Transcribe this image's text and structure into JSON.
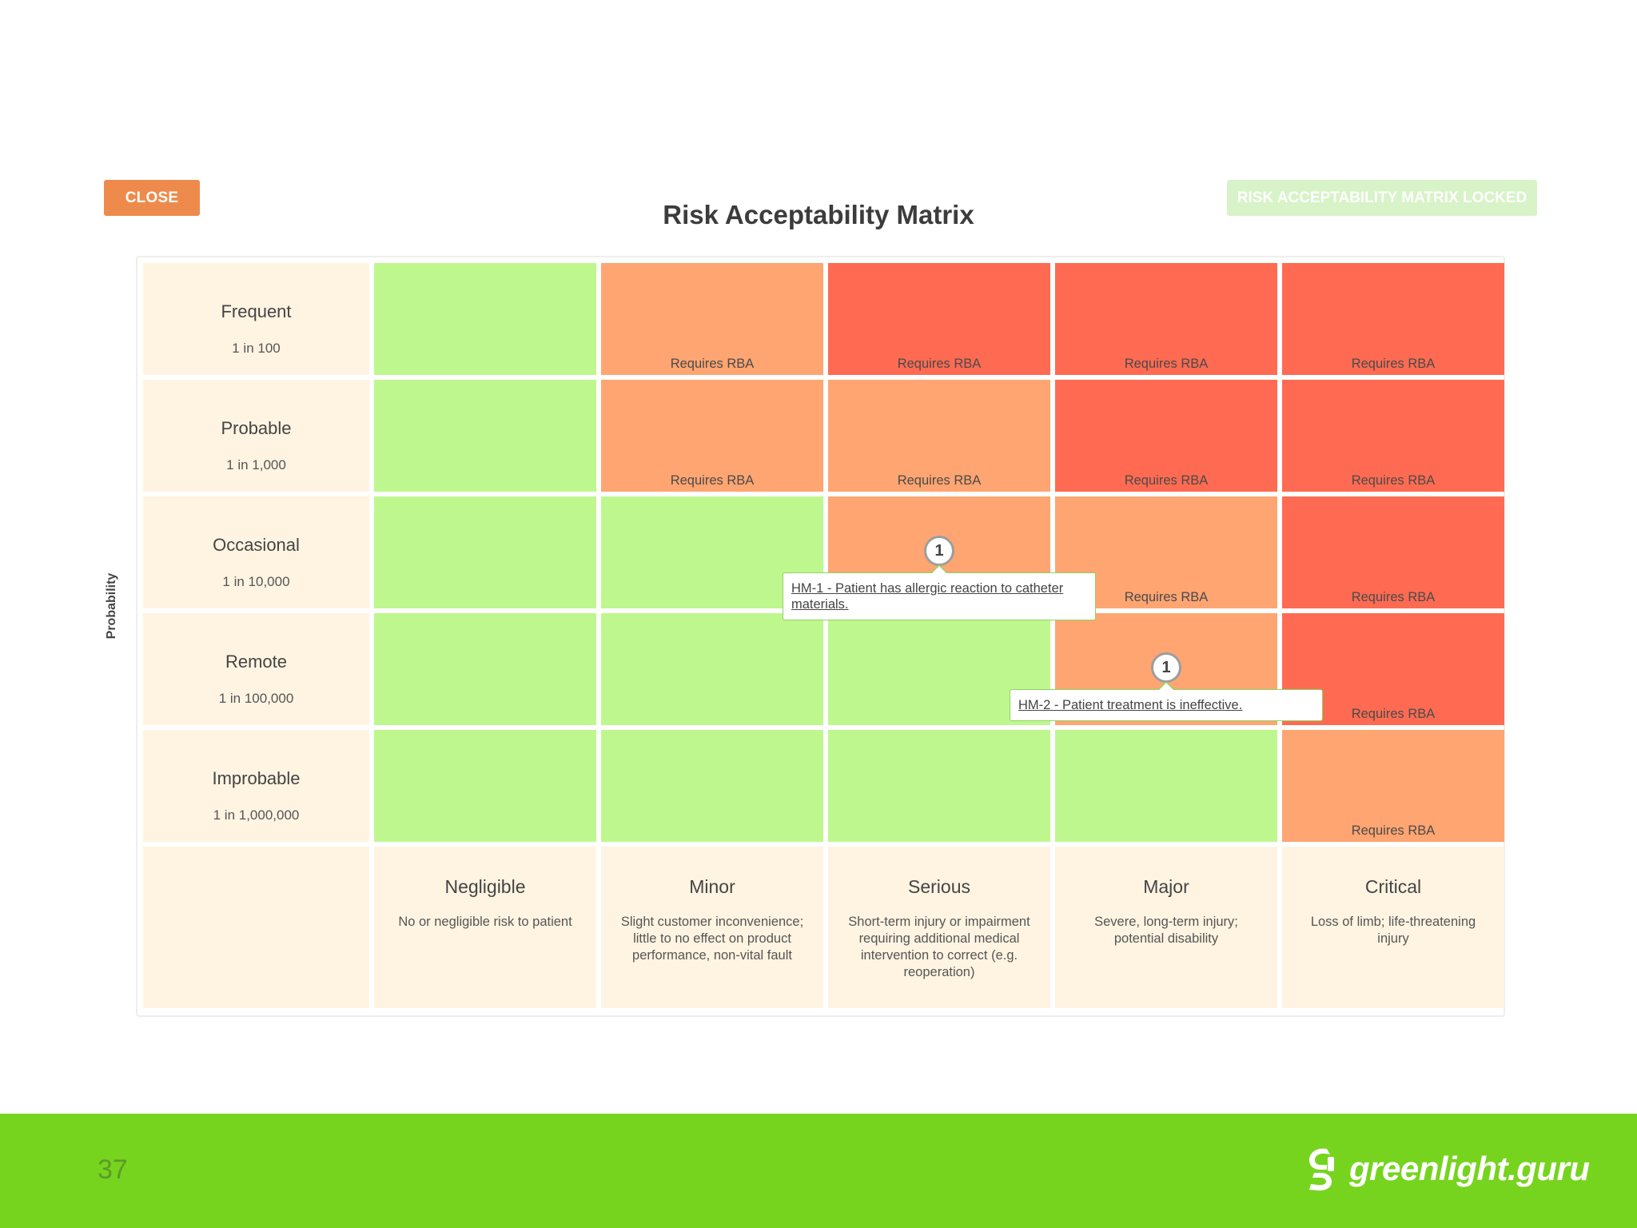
{
  "header": {
    "close_label": "CLOSE",
    "title": "Risk Acceptability Matrix",
    "locked_label": "RISK ACCEPTABILITY MATRIX LOCKED"
  },
  "axis": {
    "probability_label": "Probability"
  },
  "rows": [
    {
      "name": "Frequent",
      "freq": "1 in 100"
    },
    {
      "name": "Probable",
      "freq": "1 in 1,000"
    },
    {
      "name": "Occasional",
      "freq": "1 in 10,000"
    },
    {
      "name": "Remote",
      "freq": "1 in 100,000"
    },
    {
      "name": "Improbable",
      "freq": "1 in 1,000,000"
    }
  ],
  "columns": [
    {
      "name": "Negligible",
      "desc": "No or negligible risk to patient"
    },
    {
      "name": "Minor",
      "desc": "Slight customer inconvenience; little to no effect on product performance, non-vital fault"
    },
    {
      "name": "Serious",
      "desc": "Short-term injury or impairment requiring additional medical intervention to correct (e.g. reoperation)"
    },
    {
      "name": "Major",
      "desc": "Severe, long-term injury; potential disability"
    },
    {
      "name": "Critical",
      "desc": "Loss of limb; life-threatening injury"
    }
  ],
  "cell_label": "Requires RBA",
  "colors": {
    "green": "#bff78f",
    "orange": "#fea572",
    "red": "#fe6b52",
    "accent": "#ee8a4c",
    "footer": "#76d41e"
  },
  "cells": [
    [
      "green",
      "orange",
      "red",
      "red",
      "red"
    ],
    [
      "green",
      "orange",
      "orange",
      "red",
      "red"
    ],
    [
      "green",
      "green",
      "orange",
      "orange",
      "red"
    ],
    [
      "green",
      "green",
      "green",
      "orange",
      "red"
    ],
    [
      "green",
      "green",
      "green",
      "green",
      "orange"
    ]
  ],
  "hazards": [
    {
      "row": 2,
      "col": 2,
      "count": "1",
      "text": "HM-1 - Patient has allergic reaction to catheter materials."
    },
    {
      "row": 3,
      "col": 3,
      "count": "1",
      "text": "HM-2 - Patient treatment is ineffective."
    }
  ],
  "footer": {
    "page_number": "37",
    "brand": "greenlight.guru"
  }
}
